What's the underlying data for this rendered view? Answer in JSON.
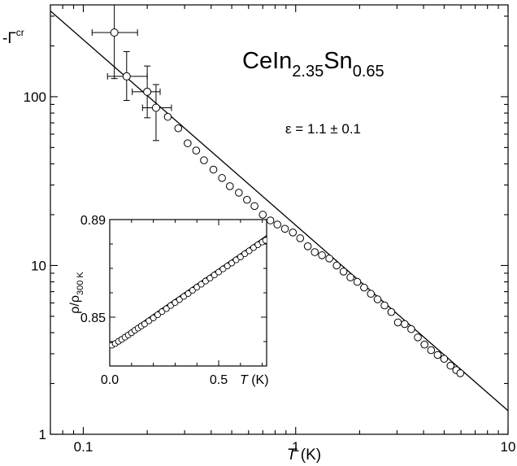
{
  "chart_data": [
    {
      "type": "scatter",
      "title": "",
      "annotations": {
        "compound": {
          "base": "CeIn",
          "sub1": "2.35",
          "mid": "Sn",
          "sub2": "0.65"
        },
        "epsilon": "ε = 1.1 ± 0.1"
      },
      "ylabel": {
        "prefix": "-Γ",
        "sup": "cr"
      },
      "xlabel": {
        "italic": "T",
        "rest": " (K)"
      },
      "x_scale": "log",
      "y_scale": "log",
      "xlim": [
        0.07,
        10
      ],
      "ylim": [
        1,
        350
      ],
      "x_ticks": [
        0.1,
        1,
        10
      ],
      "x_tick_labels": [
        "0.1",
        "1",
        "10"
      ],
      "y_ticks": [
        1,
        10,
        100
      ],
      "y_tick_labels": [
        "1",
        "10",
        "100"
      ],
      "grid": false,
      "legend": "none",
      "fit_line": {
        "x": [
          0.07,
          10
        ],
        "y": [
          322,
          1.38
        ]
      },
      "error_points": [
        {
          "x": 0.14,
          "y": 240,
          "xerr": [
            0.11,
            0.18
          ],
          "yerr": [
            128,
            370
          ]
        },
        {
          "x": 0.16,
          "y": 132,
          "xerr": [
            0.13,
            0.2
          ],
          "yerr": [
            95,
            185
          ]
        },
        {
          "x": 0.2,
          "y": 107,
          "xerr": [
            0.17,
            0.23
          ],
          "yerr": [
            75,
            152
          ]
        },
        {
          "x": 0.22,
          "y": 86,
          "xerr": [
            0.19,
            0.26
          ],
          "yerr": [
            55,
            118
          ]
        }
      ],
      "series": [
        {
          "x": [
            0.25,
            0.28,
            0.31,
            0.34,
            0.37,
            0.41,
            0.45,
            0.49,
            0.54,
            0.59,
            0.64,
            0.7,
            0.76,
            0.82,
            0.89,
            0.97,
            1.05,
            1.14,
            1.23,
            1.33,
            1.44,
            1.56,
            1.68,
            1.81,
            1.95,
            2.1,
            2.26,
            2.43,
            2.62,
            2.82,
            3.03,
            3.26,
            3.5,
            3.76,
            4.04,
            4.34,
            4.66,
            5.0,
            5.36,
            5.7,
            5.96
          ],
          "y": [
            76,
            65,
            53,
            48,
            42,
            37,
            33,
            29.5,
            27,
            24.5,
            22.5,
            20,
            18.5,
            17.5,
            16.5,
            15.7,
            14.5,
            13,
            12,
            11.5,
            11,
            10,
            9.2,
            8.5,
            8,
            7.4,
            6.8,
            6.3,
            5.8,
            5.3,
            4.6,
            4.5,
            4.2,
            3.75,
            3.4,
            3.15,
            2.95,
            2.8,
            2.55,
            2.4,
            2.3
          ]
        }
      ]
    },
    {
      "type": "scatter",
      "title": "",
      "ylabel": {
        "rho": "ρ/ρ",
        "sub": "300 K"
      },
      "xlabel": {
        "italic": "T",
        "rest": " (K)"
      },
      "xlim": [
        0,
        0.72
      ],
      "ylim": [
        0.83,
        0.89
      ],
      "x_ticks": [
        0,
        0.5
      ],
      "x_tick_labels": [
        "0.0",
        "0.5"
      ],
      "y_ticks": [
        0.85,
        0.89
      ],
      "y_tick_labels": [
        "0.85",
        "0.89"
      ],
      "grid": false,
      "legend": "none",
      "fit_line": {
        "x": [
          0,
          0.72
        ],
        "y": [
          0.8386,
          0.8834
        ]
      },
      "series": [
        {
          "x": [
            0.01,
            0.025,
            0.04,
            0.055,
            0.07,
            0.085,
            0.1,
            0.115,
            0.13,
            0.145,
            0.16,
            0.18,
            0.2,
            0.22,
            0.24,
            0.26,
            0.28,
            0.3,
            0.32,
            0.34,
            0.36,
            0.38,
            0.4,
            0.42,
            0.44,
            0.46,
            0.48,
            0.5,
            0.52,
            0.54,
            0.56,
            0.58,
            0.6,
            0.62,
            0.64,
            0.66,
            0.68,
            0.7,
            0.715
          ],
          "y": [
            0.8385,
            0.8392,
            0.8401,
            0.8409,
            0.8418,
            0.8427,
            0.8436,
            0.8446,
            0.8455,
            0.8464,
            0.8472,
            0.8485,
            0.8497,
            0.851,
            0.8523,
            0.8535,
            0.8548,
            0.856,
            0.8572,
            0.8585,
            0.8597,
            0.861,
            0.8623,
            0.8635,
            0.8648,
            0.866,
            0.8673,
            0.8685,
            0.8698,
            0.871,
            0.8722,
            0.8735,
            0.8747,
            0.876,
            0.8772,
            0.8785,
            0.8797,
            0.8808,
            0.8815
          ]
        }
      ]
    }
  ]
}
